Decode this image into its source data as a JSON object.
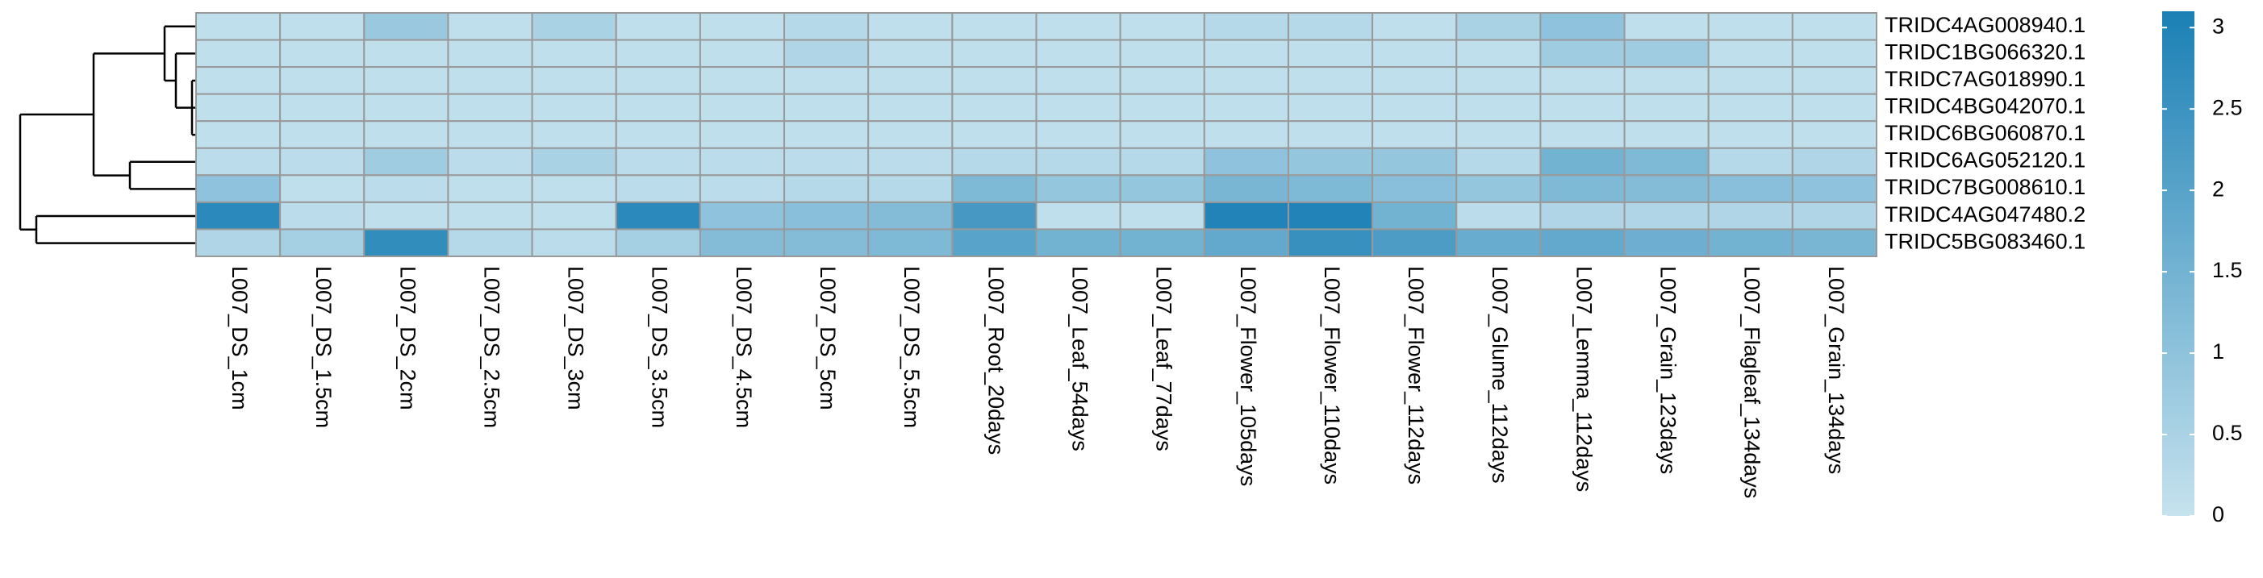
{
  "chart_data": {
    "type": "heatmap",
    "x": [
      "L007_DS_1cm",
      "L007_DS_1.5cm",
      "L007_DS_2cm",
      "L007_DS_2.5cm",
      "L007_DS_3cm",
      "L007_DS_3.5cm",
      "L007_DS_4.5cm",
      "L007_DS_5cm",
      "L007_DS_5.5cm",
      "L007_Root_20days",
      "L007_Leaf_54days",
      "L007_Leaf_77days",
      "L007_Flower_105days",
      "L007_Flower_110days",
      "L007_Flower_112days",
      "L007_Glume_112days",
      "L007_Lemma_112days",
      "L007_Grain_123days",
      "L007_Flagleaf_134days",
      "L007_Grain_134days"
    ],
    "y": [
      "TRIDC4AG008940.1",
      "TRIDC1BG066320.1",
      "TRIDC7AG018990.1",
      "TRIDC4BG042070.1",
      "TRIDC6BG060870.1",
      "TRIDC6AG052120.1",
      "TRIDC7BG008610.1",
      "TRIDC4AG047480.2",
      "TRIDC5BG083460.1"
    ],
    "values": [
      [
        0.1,
        0.1,
        0.8,
        0.1,
        0.5,
        0.1,
        0.1,
        0.3,
        0.1,
        0.1,
        0.1,
        0.1,
        0.3,
        0.3,
        0.1,
        0.5,
        1.0,
        0.1,
        0.1,
        0.1
      ],
      [
        0.1,
        0.1,
        0.1,
        0.1,
        0.1,
        0.1,
        0.1,
        0.4,
        0.1,
        0.1,
        0.1,
        0.1,
        0.1,
        0.1,
        0.1,
        0.1,
        0.7,
        0.7,
        0.1,
        0.1
      ],
      [
        0.1,
        0.1,
        0.1,
        0.1,
        0.1,
        0.1,
        0.1,
        0.1,
        0.1,
        0.1,
        0.1,
        0.1,
        0.1,
        0.1,
        0.1,
        0.1,
        0.1,
        0.1,
        0.1,
        0.1
      ],
      [
        0.1,
        0.1,
        0.1,
        0.1,
        0.1,
        0.1,
        0.1,
        0.1,
        0.1,
        0.1,
        0.1,
        0.1,
        0.1,
        0.1,
        0.1,
        0.1,
        0.1,
        0.1,
        0.1,
        0.1
      ],
      [
        0.1,
        0.1,
        0.1,
        0.1,
        0.1,
        0.1,
        0.1,
        0.1,
        0.1,
        0.1,
        0.1,
        0.1,
        0.1,
        0.1,
        0.1,
        0.1,
        0.1,
        0.1,
        0.1,
        0.1
      ],
      [
        0.2,
        0.2,
        0.7,
        0.2,
        0.5,
        0.2,
        0.2,
        0.2,
        0.2,
        0.3,
        0.3,
        0.3,
        1.0,
        0.9,
        0.9,
        0.3,
        1.5,
        1.3,
        0.3,
        0.4
      ],
      [
        1.0,
        0.1,
        0.2,
        0.1,
        0.1,
        0.2,
        0.2,
        0.3,
        0.3,
        1.3,
        0.9,
        0.9,
        1.4,
        1.3,
        1.1,
        0.9,
        1.3,
        1.2,
        1.1,
        1.0
      ],
      [
        2.8,
        0.2,
        0.1,
        0.1,
        0.1,
        2.8,
        1.0,
        1.1,
        1.2,
        2.3,
        0.1,
        0.1,
        3.0,
        3.0,
        1.5,
        0.2,
        0.4,
        0.4,
        0.4,
        0.4
      ],
      [
        0.4,
        0.6,
        2.7,
        0.3,
        0.2,
        0.6,
        1.2,
        1.2,
        1.3,
        2.0,
        1.5,
        1.5,
        1.8,
        2.6,
        2.2,
        1.7,
        1.8,
        1.6,
        1.5,
        1.4
      ]
    ],
    "colors": [
      "#c6e2ee",
      "#1b80b5"
    ],
    "zlim": [
      0,
      3.1
    ],
    "zticks": [
      0,
      0.5,
      1,
      1.5,
      2,
      2.5,
      3
    ]
  }
}
